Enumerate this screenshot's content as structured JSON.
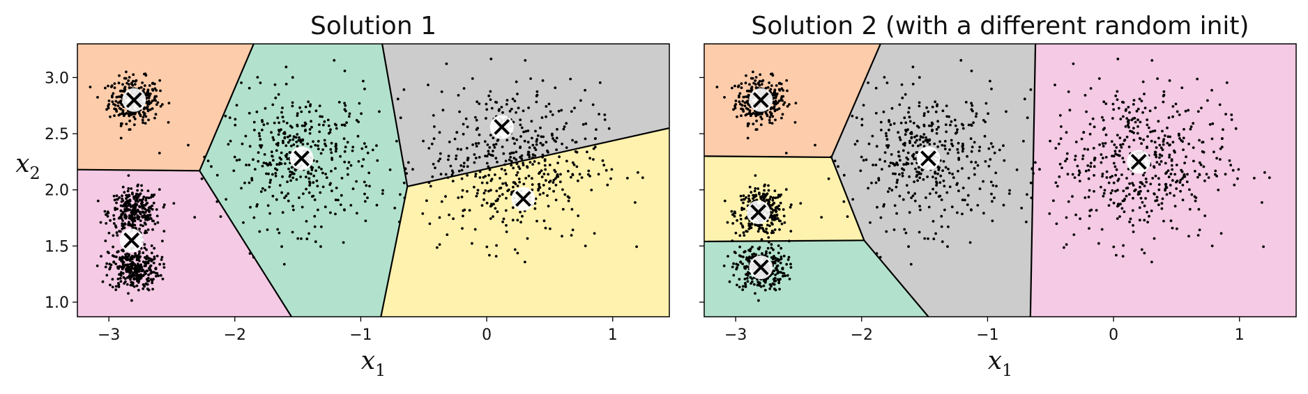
{
  "chart_data": [
    {
      "type": "scatter",
      "title": "Solution 1",
      "xlabel": "x",
      "xlabel_subscript": "1",
      "ylabel": "x",
      "ylabel_subscript": "2",
      "xlim": [
        -3.25,
        1.45
      ],
      "ylim": [
        0.87,
        3.3
      ],
      "xticks": [
        -3,
        -2,
        -1,
        0,
        1
      ],
      "yticks": [
        1.0,
        1.5,
        2.0,
        2.5,
        3.0
      ],
      "xtick_labels": [
        "−3",
        "−2",
        "−1",
        "0",
        "1"
      ],
      "ytick_labels": [
        "1.0",
        "1.5",
        "2.0",
        "2.5",
        "3.0"
      ],
      "show_ytick_labels": true,
      "centroids": [
        {
          "x": -2.8,
          "y": 2.8
        },
        {
          "x": -1.47,
          "y": 2.28
        },
        {
          "x": 0.12,
          "y": 2.56
        },
        {
          "x": 0.29,
          "y": 1.92
        },
        {
          "x": -2.82,
          "y": 1.55
        }
      ],
      "regions": [
        {
          "color": "#fdccaa",
          "polygon": [
            [
              -3.25,
              3.3
            ],
            [
              -1.85,
              3.3
            ],
            [
              -2.28,
              2.17
            ],
            [
              -3.25,
              2.18
            ]
          ]
        },
        {
          "color": "#b2e2cd",
          "polygon": [
            [
              -1.85,
              3.3
            ],
            [
              -0.83,
              3.3
            ],
            [
              -0.63,
              2.03
            ],
            [
              -0.84,
              0.87
            ],
            [
              -1.55,
              0.87
            ],
            [
              -2.28,
              2.17
            ]
          ]
        },
        {
          "color": "#cccccc",
          "polygon": [
            [
              -0.83,
              3.3
            ],
            [
              1.45,
              3.3
            ],
            [
              1.45,
              2.55
            ],
            [
              -0.63,
              2.03
            ]
          ]
        },
        {
          "color": "#fff2ae",
          "polygon": [
            [
              -0.63,
              2.03
            ],
            [
              1.45,
              2.55
            ],
            [
              1.45,
              0.87
            ],
            [
              -0.84,
              0.87
            ]
          ]
        },
        {
          "color": "#f4cae4",
          "polygon": [
            [
              -3.25,
              2.18
            ],
            [
              -2.28,
              2.17
            ],
            [
              -1.55,
              0.87
            ],
            [
              -3.25,
              0.87
            ]
          ]
        }
      ],
      "boundaries": [
        [
          [
            -1.85,
            3.3
          ],
          [
            -2.28,
            2.17
          ]
        ],
        [
          [
            -3.25,
            2.18
          ],
          [
            -2.28,
            2.17
          ]
        ],
        [
          [
            -2.28,
            2.17
          ],
          [
            -1.55,
            0.87
          ]
        ],
        [
          [
            -0.83,
            3.3
          ],
          [
            -0.63,
            2.03
          ]
        ],
        [
          [
            -0.63,
            2.03
          ],
          [
            1.45,
            2.55
          ]
        ],
        [
          [
            -0.63,
            2.03
          ],
          [
            -0.84,
            0.87
          ]
        ]
      ]
    },
    {
      "type": "scatter",
      "title": "Solution 2 (with a different random init)",
      "xlabel": "x",
      "xlabel_subscript": "1",
      "ylabel": "",
      "ylabel_subscript": "",
      "xlim": [
        -3.25,
        1.45
      ],
      "ylim": [
        0.87,
        3.3
      ],
      "xticks": [
        -3,
        -2,
        -1,
        0,
        1
      ],
      "yticks": [
        1.0,
        1.5,
        2.0,
        2.5,
        3.0
      ],
      "xtick_labels": [
        "−3",
        "−2",
        "−1",
        "0",
        "1"
      ],
      "ytick_labels": [
        "1.0",
        "1.5",
        "2.0",
        "2.5",
        "3.0"
      ],
      "show_ytick_labels": false,
      "centroids": [
        {
          "x": -2.8,
          "y": 2.8
        },
        {
          "x": -1.47,
          "y": 2.28
        },
        {
          "x": 0.2,
          "y": 2.25
        },
        {
          "x": -2.82,
          "y": 1.8
        },
        {
          "x": -2.8,
          "y": 1.31
        }
      ],
      "regions": [
        {
          "color": "#fdccaa",
          "polygon": [
            [
              -3.25,
              3.3
            ],
            [
              -1.85,
              3.3
            ],
            [
              -2.24,
              2.29
            ],
            [
              -3.25,
              2.3
            ]
          ]
        },
        {
          "color": "#cccccc",
          "polygon": [
            [
              -1.85,
              3.3
            ],
            [
              -0.62,
              3.3
            ],
            [
              -0.66,
              0.87
            ],
            [
              -1.47,
              0.87
            ],
            [
              -1.98,
              1.55
            ],
            [
              -2.24,
              2.29
            ]
          ]
        },
        {
          "color": "#f4cae4",
          "polygon": [
            [
              -0.62,
              3.3
            ],
            [
              1.45,
              3.3
            ],
            [
              1.45,
              0.87
            ],
            [
              -0.66,
              0.87
            ]
          ]
        },
        {
          "color": "#fff2ae",
          "polygon": [
            [
              -3.25,
              2.3
            ],
            [
              -2.24,
              2.29
            ],
            [
              -1.98,
              1.55
            ],
            [
              -3.25,
              1.54
            ]
          ]
        },
        {
          "color": "#b2e2cd",
          "polygon": [
            [
              -3.25,
              1.54
            ],
            [
              -1.98,
              1.55
            ],
            [
              -1.47,
              0.87
            ],
            [
              -3.25,
              0.87
            ]
          ]
        }
      ],
      "boundaries": [
        [
          [
            -1.85,
            3.3
          ],
          [
            -2.24,
            2.29
          ]
        ],
        [
          [
            -3.25,
            2.3
          ],
          [
            -2.24,
            2.29
          ]
        ],
        [
          [
            -2.24,
            2.29
          ],
          [
            -1.98,
            1.55
          ]
        ],
        [
          [
            -3.25,
            1.54
          ],
          [
            -1.98,
            1.55
          ]
        ],
        [
          [
            -1.98,
            1.55
          ],
          [
            -1.47,
            0.87
          ]
        ],
        [
          [
            -0.62,
            3.3
          ],
          [
            -0.66,
            0.87
          ]
        ]
      ]
    }
  ],
  "clusters": [
    {
      "x": -2.8,
      "y": 2.8,
      "sx": 0.1,
      "sy": 0.1,
      "n": 300
    },
    {
      "x": -2.8,
      "y": 1.8,
      "sx": 0.1,
      "sy": 0.1,
      "n": 300
    },
    {
      "x": -2.8,
      "y": 1.3,
      "sx": 0.1,
      "sy": 0.1,
      "n": 300
    },
    {
      "x": -1.47,
      "y": 2.28,
      "sx": 0.3,
      "sy": 0.3,
      "n": 400
    },
    {
      "x": 0.2,
      "y": 2.25,
      "sx": 0.35,
      "sy": 0.35,
      "n": 500
    }
  ]
}
